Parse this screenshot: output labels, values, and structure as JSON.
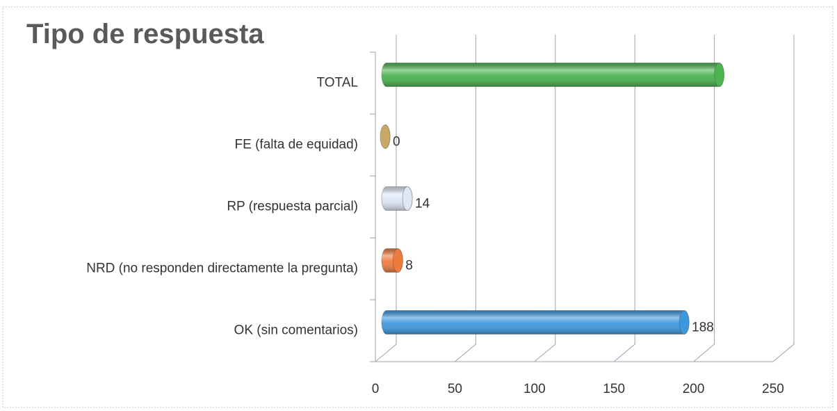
{
  "chart_data": {
    "type": "bar",
    "orientation": "horizontal",
    "title": "Tipo de respuesta",
    "categories": [
      "OK (sin comentarios)",
      "NRD (no responden directamente la pregunta)",
      "RP (respuesta parcial)",
      "FE (falta de equidad)",
      "TOTAL"
    ],
    "values": [
      188,
      8,
      14,
      0,
      210
    ],
    "value_labels": [
      "188",
      "8",
      "14",
      "0",
      null
    ],
    "colors": [
      "#3d98de",
      "#ee7b3e",
      "#dfe7f5",
      "#c9a865",
      "#4cb34f"
    ],
    "xlim": [
      0,
      250
    ],
    "xticks": [
      0,
      50,
      100,
      150,
      200,
      250
    ],
    "grid": true
  }
}
